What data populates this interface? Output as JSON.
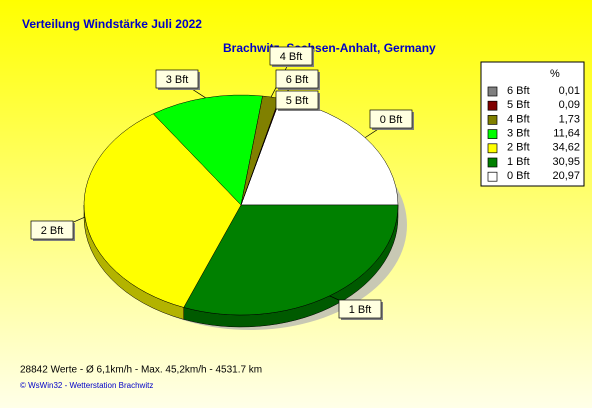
{
  "chart_data": {
    "type": "pie",
    "title": "Verteilung Windstärke  Juli 2022",
    "subtitle": "Brachwitz, Sachsen-Anhalt, Germany",
    "legend_header": "%",
    "categories": [
      "6 Bft",
      "5 Bft",
      "4 Bft",
      "3 Bft",
      "2 Bft",
      "1 Bft",
      "0 Bft"
    ],
    "values": [
      0.01,
      0.09,
      1.73,
      11.64,
      34.62,
      30.95,
      20.97
    ],
    "value_labels": [
      "0,01",
      "0,09",
      "1,73",
      "11,64",
      "34,62",
      "30,95",
      "20,97"
    ],
    "colors": [
      "#808080",
      "#800000",
      "#808000",
      "#00ff00",
      "#ffff00",
      "#008000",
      "#ffffff"
    ],
    "legend": "right",
    "footer": "28842 Werte   -   Ø 6,1km/h  -  Max. 45,2km/h   -   4531.7 km",
    "credit": "© WsWin32  -  Wetterstation Brachwitz"
  }
}
